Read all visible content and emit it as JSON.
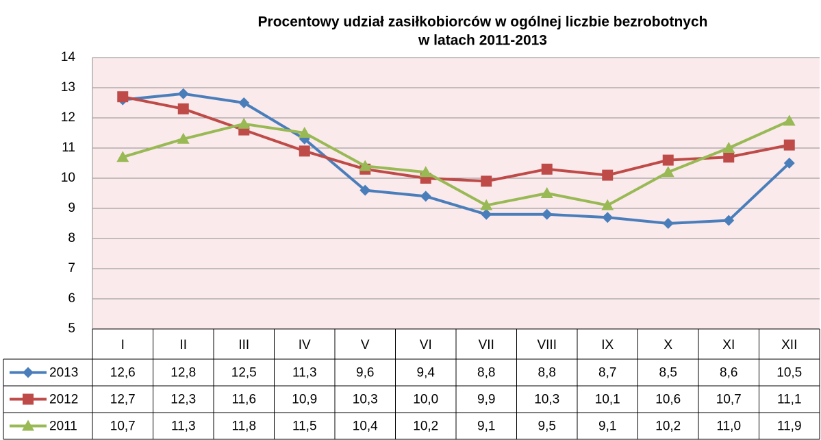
{
  "chart_data": {
    "type": "line",
    "title": [
      "Procentowy udział zasiłkobiorców w ogólnej liczbie bezrobotnych",
      "w latach 2011-2013"
    ],
    "categories": [
      "I",
      "II",
      "III",
      "IV",
      "V",
      "VI",
      "VII",
      "VIII",
      "IX",
      "X",
      "XI",
      "XII"
    ],
    "series": [
      {
        "name": "2013",
        "color": "#4a7ebb",
        "marker": "diamond",
        "values": [
          12.6,
          12.8,
          12.5,
          11.3,
          9.6,
          9.4,
          8.8,
          8.8,
          8.7,
          8.5,
          8.6,
          10.5
        ],
        "value_labels": [
          "12,6",
          "12,8",
          "12,5",
          "11,3",
          "9,6",
          "9,4",
          "8,8",
          "8,8",
          "8,7",
          "8,5",
          "8,6",
          "10,5"
        ]
      },
      {
        "name": "2012",
        "color": "#be4b48",
        "marker": "square",
        "values": [
          12.7,
          12.3,
          11.6,
          10.9,
          10.3,
          10.0,
          9.9,
          10.3,
          10.1,
          10.6,
          10.7,
          11.1
        ],
        "value_labels": [
          "12,7",
          "12,3",
          "11,6",
          "10,9",
          "10,3",
          "10,0",
          "9,9",
          "10,3",
          "10,1",
          "10,6",
          "10,7",
          "11,1"
        ]
      },
      {
        "name": "2011",
        "color": "#98b954",
        "marker": "triangle",
        "values": [
          10.7,
          11.3,
          11.8,
          11.5,
          10.4,
          10.2,
          9.1,
          9.5,
          9.1,
          10.2,
          11.0,
          11.9
        ],
        "value_labels": [
          "10,7",
          "11,3",
          "11,8",
          "11,5",
          "10,4",
          "10,2",
          "9,1",
          "9,5",
          "9,1",
          "10,2",
          "11,0",
          "11,9"
        ]
      }
    ],
    "ylim": [
      5,
      14
    ],
    "yticks": [
      5,
      6,
      7,
      8,
      9,
      10,
      11,
      12,
      13,
      14
    ],
    "grid": true
  }
}
